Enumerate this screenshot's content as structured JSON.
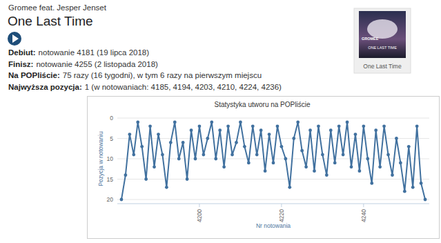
{
  "page": {
    "artist": "Gromee feat. Jesper Jenset",
    "title": "One Last Time",
    "info": [
      {
        "label": "Debiut:",
        "value": "notowanie 4181 (19 lipca 2018)"
      },
      {
        "label": "Finisz:",
        "value": "notowanie 4255 (2 listopada 2018)"
      },
      {
        "label": "Na POPliście:",
        "value": "75 razy (16 tygodni), w tym 6 razy na pierwszym miejscu"
      },
      {
        "label": "Najwyższa pozycja:",
        "value": "1 (w notowaniach: 4185, 4194, 4203, 4210, 4224, 4236)"
      }
    ],
    "cover_texts": [
      "GROMEE",
      "ONE LAST TIME"
    ],
    "cover_caption": "One Last Time"
  },
  "chart_data": {
    "type": "line",
    "title": "Statystyka utworu na POPliście",
    "x_label": "Nr notowania",
    "y_label": "Pozycja w notowaniu",
    "x": [
      4181,
      4182,
      4183,
      4184,
      4185,
      4186,
      4187,
      4188,
      4189,
      4190,
      4191,
      4192,
      4193,
      4194,
      4195,
      4196,
      4197,
      4198,
      4199,
      4200,
      4201,
      4202,
      4203,
      4204,
      4205,
      4206,
      4207,
      4208,
      4209,
      4210,
      4211,
      4212,
      4213,
      4214,
      4215,
      4216,
      4217,
      4218,
      4219,
      4220,
      4221,
      4222,
      4223,
      4224,
      4225,
      4226,
      4227,
      4228,
      4229,
      4230,
      4231,
      4232,
      4233,
      4234,
      4235,
      4236,
      4237,
      4238,
      4239,
      4240,
      4241,
      4242,
      4243,
      4244,
      4245,
      4246,
      4247,
      4248,
      4249,
      4250,
      4251,
      4252,
      4253,
      4254,
      4255
    ],
    "values": [
      20,
      14,
      4,
      9,
      1,
      7,
      15,
      2,
      12,
      4,
      9,
      17,
      6,
      1,
      10,
      6,
      15,
      3,
      10,
      2,
      9,
      5,
      1,
      10,
      3,
      12,
      2,
      9,
      6,
      1,
      7,
      11,
      2,
      9,
      3,
      13,
      4,
      11,
      2,
      7,
      10,
      17,
      5,
      1,
      8,
      12,
      3,
      13,
      2,
      9,
      14,
      3,
      11,
      2,
      9,
      1,
      12,
      4,
      13,
      2,
      10,
      16,
      3,
      12,
      2,
      9,
      14,
      5,
      11,
      18,
      7,
      17,
      2,
      16,
      20
    ],
    "color": "#41719f",
    "marker": "circle",
    "xlim": [
      4180,
      4256
    ],
    "xticks": [
      4200,
      4220,
      4240
    ],
    "ylim": [
      20,
      0
    ],
    "yticks": [
      0,
      5,
      10,
      15,
      20
    ],
    "grid": true
  }
}
